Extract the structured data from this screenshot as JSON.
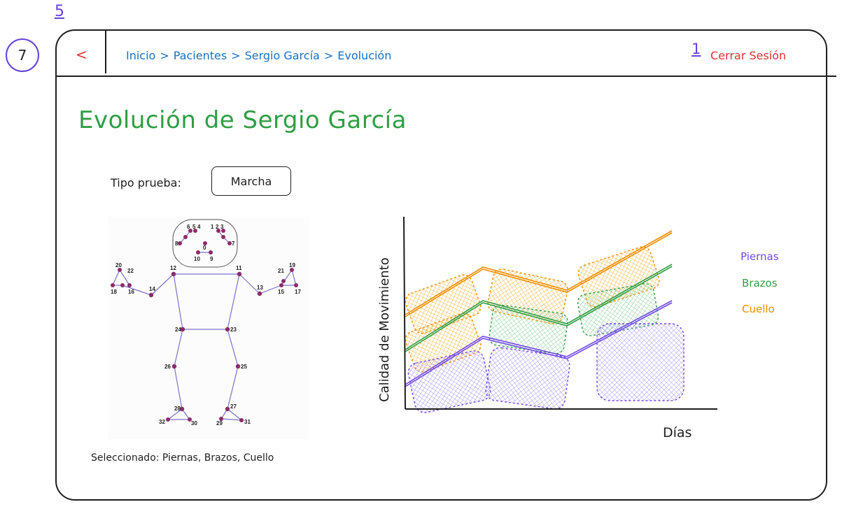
{
  "annotations": {
    "num_top": "5",
    "num_header": "1",
    "num_side": "7"
  },
  "header": {
    "back_icon": "<",
    "breadcrumb": [
      "Inicio",
      ">",
      "Pacientes",
      ">",
      "Sergio García",
      ">",
      "Evolución"
    ],
    "logout_label": "Cerrar Sesión"
  },
  "page": {
    "title": "Evolución de Sergio García",
    "test_type_label": "Tipo prueba:",
    "test_type_value": "Marcha",
    "selected_summary": "Seleccionado: Piernas, Brazos, Cuello"
  },
  "skeleton": {
    "point_labels": [
      "0",
      "1",
      "2",
      "3",
      "4",
      "5",
      "6",
      "7",
      "8",
      "9",
      "10",
      "11",
      "12",
      "13",
      "14",
      "15",
      "16",
      "17",
      "18",
      "19",
      "20",
      "21",
      "22",
      "23",
      "24",
      "25",
      "26",
      "27",
      "28",
      "29",
      "30",
      "31",
      "32"
    ]
  },
  "chart_data": {
    "type": "line",
    "title": "",
    "xlabel": "Días",
    "ylabel": "Calidad de Movimiento",
    "series": [
      {
        "name": "Piernas",
        "color": "#7048e8"
      },
      {
        "name": "Brazos",
        "color": "#2f9e44"
      },
      {
        "name": "Cuello",
        "color": "#f08c00"
      }
    ]
  },
  "colors": {
    "accent_green": "#2f9e44",
    "link_blue": "#1971c2",
    "danger_red": "#e03131",
    "annotation_purple": "#6741d9"
  }
}
